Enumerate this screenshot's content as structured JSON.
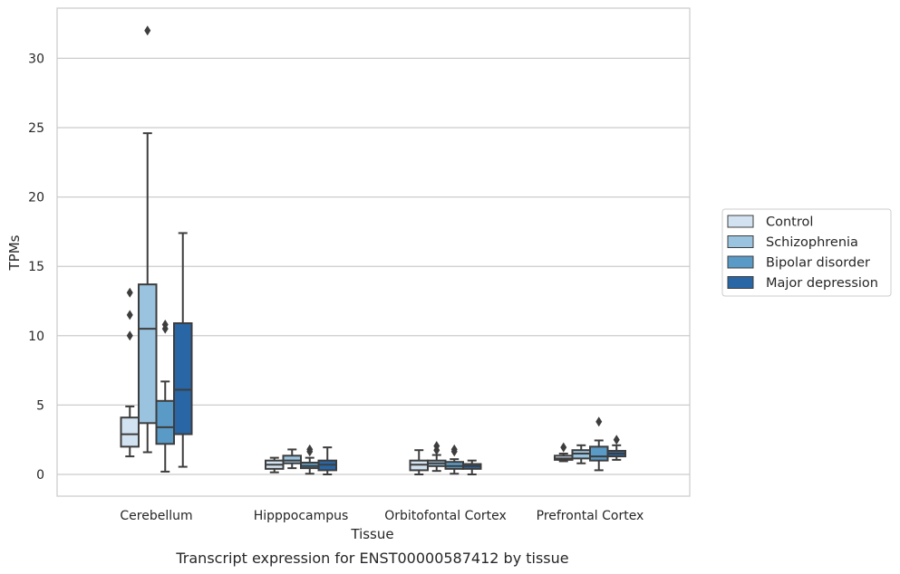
{
  "chart_data": {
    "type": "boxplot",
    "title": "Transcript expression for ENST00000587412 by tissue",
    "xlabel": "Tissue",
    "ylabel": "TPMs",
    "ylim": [
      -1.5,
      33.5
    ],
    "yticks": [
      0,
      5,
      10,
      15,
      20,
      25,
      30
    ],
    "grid": "horizontal",
    "legend_position": "right",
    "categories": [
      "Cerebellum",
      "Hipppocampus",
      "Orbitofontal Cortex",
      "Prefrontal Cortex"
    ],
    "series": [
      {
        "name": "Control",
        "color": "#d2e2f0",
        "boxes": [
          {
            "whislo": 1.3,
            "q1": 2.0,
            "med": 2.9,
            "q3": 4.1,
            "whishi": 4.9,
            "fliers": [
              10.0,
              11.5,
              13.1
            ]
          },
          {
            "whislo": 0.15,
            "q1": 0.4,
            "med": 0.7,
            "q3": 1.0,
            "whishi": 1.2,
            "fliers": []
          },
          {
            "whislo": 0.0,
            "q1": 0.3,
            "med": 0.7,
            "q3": 1.0,
            "whishi": 1.75,
            "fliers": []
          },
          {
            "whislo": 0.95,
            "q1": 1.05,
            "med": 1.15,
            "q3": 1.35,
            "whishi": 1.5,
            "fliers": [
              1.95
            ]
          }
        ]
      },
      {
        "name": "Schizophrenia",
        "color": "#9ac3df",
        "boxes": [
          {
            "whislo": 1.6,
            "q1": 3.7,
            "med": 10.5,
            "q3": 13.7,
            "whishi": 24.6,
            "fliers": [
              32.0
            ]
          },
          {
            "whislo": 0.45,
            "q1": 0.8,
            "med": 1.0,
            "q3": 1.35,
            "whishi": 1.8,
            "fliers": []
          },
          {
            "whislo": 0.25,
            "q1": 0.6,
            "med": 0.8,
            "q3": 1.0,
            "whishi": 1.4,
            "fliers": [
              1.75,
              2.05
            ]
          },
          {
            "whislo": 0.8,
            "q1": 1.15,
            "med": 1.5,
            "q3": 1.75,
            "whishi": 2.1,
            "fliers": []
          }
        ]
      },
      {
        "name": "Bipolar disorder",
        "color": "#5a9ac6",
        "boxes": [
          {
            "whislo": 0.2,
            "q1": 2.2,
            "med": 3.4,
            "q3": 5.3,
            "whishi": 6.7,
            "fliers": [
              10.5,
              10.8
            ]
          },
          {
            "whislo": 0.05,
            "q1": 0.45,
            "med": 0.6,
            "q3": 0.85,
            "whishi": 1.2,
            "fliers": [
              1.65,
              1.8
            ]
          },
          {
            "whislo": 0.05,
            "q1": 0.4,
            "med": 0.6,
            "q3": 0.9,
            "whishi": 1.1,
            "fliers": [
              1.65,
              1.8
            ]
          },
          {
            "whislo": 0.3,
            "q1": 1.0,
            "med": 1.3,
            "q3": 2.0,
            "whishi": 2.45,
            "fliers": [
              3.8
            ]
          }
        ]
      },
      {
        "name": "Major depression",
        "color": "#2866a6",
        "boxes": [
          {
            "whislo": 0.55,
            "q1": 2.9,
            "med": 6.1,
            "q3": 10.9,
            "whishi": 17.4,
            "fliers": []
          },
          {
            "whislo": 0.0,
            "q1": 0.3,
            "med": 0.7,
            "q3": 1.0,
            "whishi": 1.95,
            "fliers": []
          },
          {
            "whislo": 0.0,
            "q1": 0.4,
            "med": 0.6,
            "q3": 0.75,
            "whishi": 1.0,
            "fliers": []
          },
          {
            "whislo": 1.05,
            "q1": 1.3,
            "med": 1.5,
            "q3": 1.7,
            "whishi": 2.1,
            "fliers": [
              2.5
            ]
          }
        ]
      }
    ]
  }
}
